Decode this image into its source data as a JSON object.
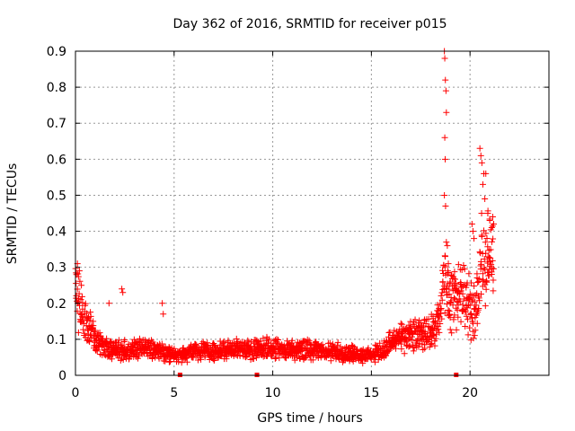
{
  "chart_data": {
    "type": "scatter",
    "title": "Day 362 of 2016, SRMTID for receiver p015",
    "xlabel": "GPS time / hours",
    "ylabel": "SRMTID / TECUs",
    "xlim": [
      0,
      24
    ],
    "ylim": [
      0,
      0.9
    ],
    "xticks": [
      0,
      5,
      10,
      15,
      20
    ],
    "yticks": [
      0,
      0.1,
      0.2,
      0.3,
      0.4,
      0.5,
      0.6,
      0.7,
      0.8,
      0.9
    ],
    "grid": true,
    "marker": "+",
    "color": "#ff0000",
    "gap_markers_x": [
      5.3,
      9.2,
      19.3
    ],
    "series": [
      {
        "name": "p015",
        "anchors": [
          {
            "x": 0.0,
            "y": 0.24
          },
          {
            "x": 0.1,
            "y": 0.22
          },
          {
            "x": 0.3,
            "y": 0.17
          },
          {
            "x": 0.6,
            "y": 0.14
          },
          {
            "x": 1.0,
            "y": 0.1
          },
          {
            "x": 1.5,
            "y": 0.08
          },
          {
            "x": 2.0,
            "y": 0.07
          },
          {
            "x": 3.0,
            "y": 0.07
          },
          {
            "x": 4.0,
            "y": 0.075
          },
          {
            "x": 5.0,
            "y": 0.055
          },
          {
            "x": 6.0,
            "y": 0.065
          },
          {
            "x": 8.0,
            "y": 0.07
          },
          {
            "x": 10.0,
            "y": 0.075
          },
          {
            "x": 12.0,
            "y": 0.07
          },
          {
            "x": 14.0,
            "y": 0.06
          },
          {
            "x": 15.0,
            "y": 0.055
          },
          {
            "x": 15.5,
            "y": 0.065
          },
          {
            "x": 16.0,
            "y": 0.09
          },
          {
            "x": 17.0,
            "y": 0.11
          },
          {
            "x": 18.0,
            "y": 0.12
          },
          {
            "x": 18.5,
            "y": 0.16
          },
          {
            "x": 18.7,
            "y": 0.28
          },
          {
            "x": 19.0,
            "y": 0.2
          },
          {
            "x": 19.5,
            "y": 0.24
          },
          {
            "x": 20.0,
            "y": 0.2
          },
          {
            "x": 20.3,
            "y": 0.17
          },
          {
            "x": 20.6,
            "y": 0.32
          },
          {
            "x": 21.0,
            "y": 0.33
          },
          {
            "x": 21.2,
            "y": 0.36
          }
        ],
        "bursts": [
          {
            "x": 0.05,
            "y": 0.28
          },
          {
            "x": 0.1,
            "y": 0.31
          },
          {
            "x": 0.2,
            "y": 0.29
          },
          {
            "x": 0.3,
            "y": 0.25
          },
          {
            "x": 2.35,
            "y": 0.24
          },
          {
            "x": 2.4,
            "y": 0.23
          },
          {
            "x": 4.4,
            "y": 0.2
          },
          {
            "x": 4.45,
            "y": 0.17
          },
          {
            "x": 1.7,
            "y": 0.2
          },
          {
            "x": 18.7,
            "y": 0.9
          },
          {
            "x": 18.72,
            "y": 0.88
          },
          {
            "x": 18.75,
            "y": 0.82
          },
          {
            "x": 18.78,
            "y": 0.79
          },
          {
            "x": 18.8,
            "y": 0.73
          },
          {
            "x": 18.72,
            "y": 0.66
          },
          {
            "x": 18.74,
            "y": 0.6
          },
          {
            "x": 18.7,
            "y": 0.5
          },
          {
            "x": 18.76,
            "y": 0.47
          },
          {
            "x": 18.8,
            "y": 0.37
          },
          {
            "x": 18.85,
            "y": 0.36
          },
          {
            "x": 18.9,
            "y": 0.31
          },
          {
            "x": 20.5,
            "y": 0.63
          },
          {
            "x": 20.55,
            "y": 0.61
          },
          {
            "x": 20.6,
            "y": 0.59
          },
          {
            "x": 20.7,
            "y": 0.56
          },
          {
            "x": 20.8,
            "y": 0.56
          },
          {
            "x": 20.65,
            "y": 0.53
          },
          {
            "x": 20.75,
            "y": 0.49
          },
          {
            "x": 20.9,
            "y": 0.45
          },
          {
            "x": 21.0,
            "y": 0.43
          },
          {
            "x": 21.1,
            "y": 0.41
          },
          {
            "x": 20.1,
            "y": 0.42
          },
          {
            "x": 20.15,
            "y": 0.4
          },
          {
            "x": 20.2,
            "y": 0.38
          },
          {
            "x": 21.15,
            "y": 0.44
          },
          {
            "x": 21.2,
            "y": 0.42
          }
        ]
      }
    ]
  }
}
